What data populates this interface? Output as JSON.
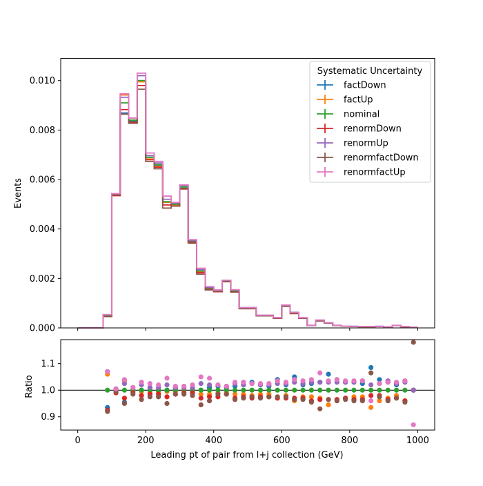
{
  "chart_data": {
    "type": "line",
    "xlabel": "Leading pt of pair from l+j collection (GeV)",
    "top_panel": {
      "ylabel": "Events",
      "ylim": [
        0,
        0.0109
      ],
      "yticks": [
        0.0,
        0.002,
        0.004,
        0.006,
        0.008,
        0.01
      ],
      "ytick_labels": [
        "0.000",
        "0.002",
        "0.004",
        "0.006",
        "0.008",
        "0.010"
      ]
    },
    "bottom_panel": {
      "ylabel": "Ratio",
      "ylim": [
        0.85,
        1.19
      ],
      "yticks": [
        0.9,
        1.0,
        1.1
      ],
      "ytick_labels": [
        "0.9",
        "1.0",
        "1.1"
      ],
      "reference_line": 1.0
    },
    "xlim": [
      -50,
      1050
    ],
    "xticks": [
      0,
      200,
      400,
      600,
      800,
      1000
    ],
    "xtick_labels": [
      "0",
      "200",
      "400",
      "600",
      "800",
      "1000"
    ],
    "bin_edges": [
      0,
      25,
      50,
      75,
      100,
      125,
      150,
      175,
      200,
      225,
      250,
      275,
      300,
      325,
      350,
      375,
      400,
      425,
      450,
      475,
      500,
      525,
      550,
      575,
      600,
      625,
      650,
      675,
      700,
      725,
      750,
      775,
      800,
      825,
      850,
      875,
      900,
      925,
      950,
      975,
      1000
    ],
    "nominal": [
      0,
      0,
      0,
      0.0005,
      0.0054,
      0.0091,
      0.0084,
      0.01,
      0.0069,
      0.0066,
      0.0051,
      0.005,
      0.0057,
      0.0035,
      0.0023,
      0.0016,
      0.0015,
      0.0019,
      0.0015,
      0.0008,
      0.0008,
      0.0005,
      0.0005,
      0.0004,
      0.0009,
      0.0006,
      0.0004,
      0.0001,
      0.0003,
      0.0002,
      0.0001,
      7e-05,
      6e-05,
      5e-05,
      5e-05,
      6e-05,
      4e-05,
      0.0001,
      5e-05,
      2e-05
    ],
    "legend": {
      "title": "Systematic Uncertainty",
      "position": "top-right"
    },
    "series": [
      {
        "name": "factDown",
        "color": "#1f77b4",
        "ratios": [
          null,
          null,
          null,
          0.935,
          1.0,
          0.955,
          0.995,
          1.0,
          1.0,
          0.995,
          1.0,
          1.005,
          1.0,
          0.995,
          1.0,
          1.01,
          1.015,
          1.01,
          1.015,
          1.02,
          1.03,
          1.02,
          1.015,
          1.04,
          1.02,
          1.05,
          1.02,
          1.025,
          1.03,
          1.06,
          1.04,
          1.03,
          1.03,
          1.025,
          1.085,
          1.04,
          1.03,
          1.02,
          1.035,
          1.0
        ]
      },
      {
        "name": "factUp",
        "color": "#ff7f0e",
        "ratios": [
          null,
          null,
          null,
          1.06,
          1.0,
          1.035,
          1.0,
          0.995,
          0.99,
          0.99,
          0.995,
          0.995,
          0.99,
          0.99,
          0.985,
          0.985,
          0.99,
          0.99,
          0.985,
          0.985,
          0.98,
          0.985,
          0.985,
          0.97,
          0.98,
          0.96,
          0.975,
          0.975,
          0.97,
          0.945,
          0.96,
          0.97,
          0.975,
          0.975,
          0.935,
          0.96,
          0.97,
          0.98,
          0.96,
          1.0
        ]
      },
      {
        "name": "nominal",
        "color": "#2ca02c",
        "ratios": [
          null,
          null,
          null,
          1.0,
          1.0,
          1.0,
          1.0,
          1.0,
          1.0,
          1.0,
          1.0,
          1.0,
          1.0,
          1.0,
          1.0,
          1.0,
          1.0,
          1.0,
          1.0,
          1.0,
          1.0,
          1.0,
          1.0,
          1.0,
          1.0,
          1.0,
          1.0,
          1.0,
          1.0,
          1.0,
          1.0,
          1.0,
          1.0,
          1.0,
          1.0,
          1.0,
          1.0,
          1.0,
          1.0,
          1.0
        ]
      },
      {
        "name": "renormDown",
        "color": "#d62728",
        "ratios": [
          null,
          null,
          null,
          0.925,
          0.99,
          0.97,
          0.99,
          0.98,
          0.985,
          0.985,
          0.975,
          0.985,
          0.99,
          0.99,
          0.97,
          0.975,
          0.975,
          0.985,
          0.97,
          0.975,
          0.97,
          0.975,
          0.975,
          0.97,
          0.97,
          0.97,
          0.97,
          0.96,
          0.965,
          0.965,
          0.965,
          0.97,
          0.965,
          0.965,
          0.98,
          0.98,
          0.965,
          0.97,
          0.96,
          1.0
        ]
      },
      {
        "name": "renormUp",
        "color": "#9467bd",
        "ratios": [
          null,
          null,
          null,
          1.07,
          1.005,
          1.025,
          1.01,
          1.02,
          1.01,
          1.01,
          1.02,
          1.01,
          1.01,
          1.01,
          1.025,
          1.02,
          1.02,
          1.015,
          1.025,
          1.02,
          1.025,
          1.02,
          1.02,
          1.025,
          1.025,
          1.03,
          1.025,
          1.03,
          1.03,
          1.03,
          1.03,
          1.03,
          1.03,
          1.035,
          1.02,
          1.025,
          1.035,
          1.025,
          1.03,
          1.0
        ]
      },
      {
        "name": "renormfactDown",
        "color": "#8c564b",
        "ratios": [
          null,
          null,
          null,
          0.92,
          0.995,
          0.95,
          0.985,
          0.965,
          0.975,
          0.975,
          0.95,
          0.985,
          0.985,
          0.98,
          0.945,
          0.96,
          0.985,
          0.985,
          0.965,
          0.97,
          0.975,
          0.97,
          0.975,
          0.975,
          0.975,
          0.965,
          0.965,
          0.955,
          0.93,
          0.965,
          0.96,
          0.965,
          0.96,
          0.96,
          1.065,
          0.975,
          0.96,
          0.97,
          0.955,
          1.18
        ]
      },
      {
        "name": "renormfactUp",
        "color": "#e377c2",
        "ratios": [
          null,
          null,
          null,
          1.07,
          1.005,
          1.04,
          1.01,
          1.03,
          1.025,
          1.02,
          1.045,
          1.015,
          1.015,
          1.02,
          1.05,
          1.045,
          1.02,
          1.015,
          1.03,
          1.03,
          1.025,
          1.025,
          1.025,
          1.035,
          1.03,
          1.04,
          1.035,
          1.04,
          1.065,
          1.035,
          1.04,
          1.035,
          1.035,
          1.035,
          0.96,
          1.025,
          1.03,
          1.03,
          1.035,
          0.87
        ]
      }
    ]
  }
}
